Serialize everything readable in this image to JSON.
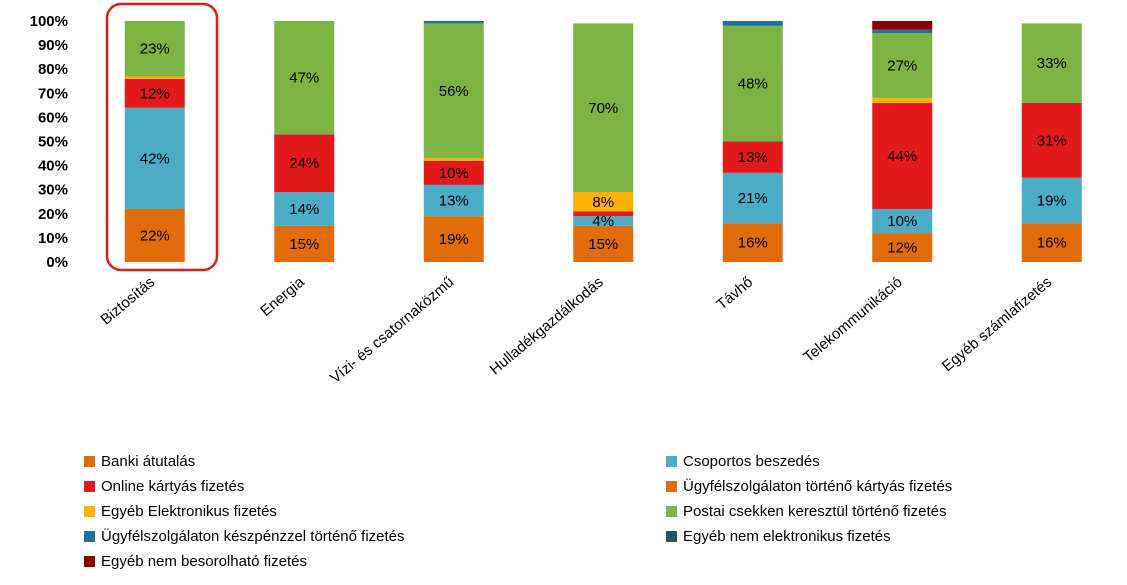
{
  "chart_data": {
    "type": "bar",
    "stacked": true,
    "categories": [
      "Biztosítás",
      "Energia",
      "Vízi- és csatornaközmű",
      "Hulladékgazdálkodás",
      "Távhő",
      "Telekommunikáció",
      "Egyéb számlafizetés"
    ],
    "ylim": [
      0,
      1
    ],
    "yticks": [
      "0%",
      "10%",
      "20%",
      "30%",
      "40%",
      "50%",
      "60%",
      "70%",
      "80%",
      "90%",
      "100%"
    ],
    "legend_position": "bottom",
    "series": [
      {
        "name": "Banki átutalás",
        "color": "#e36c0a",
        "values": [
          0.22,
          0.15,
          0.19,
          0.15,
          0.16,
          0.12,
          0.16
        ],
        "labels": [
          "22%",
          "15%",
          "19%",
          "15%",
          "16%",
          "12%",
          "16%"
        ]
      },
      {
        "name": "Csoportos beszedés",
        "color": "#4bacc6",
        "values": [
          0.42,
          0.14,
          0.13,
          0.04,
          0.21,
          0.1,
          0.19
        ],
        "labels": [
          "42%",
          "14%",
          "13%",
          "4%",
          "21%",
          "10%",
          "19%"
        ]
      },
      {
        "name": "Online kártyás fizetés",
        "color": "#e31a1c",
        "values": [
          0.12,
          0.24,
          0.1,
          0.02,
          0.13,
          0.44,
          0.31
        ],
        "labels": [
          "12%",
          "24%",
          "10%",
          "",
          "13%",
          "44%",
          "31%"
        ]
      },
      {
        "name": "Ügyfélszolgálaton történő kártyás fizetés",
        "color": "#e36c0a",
        "values": [
          0,
          0,
          0,
          0,
          0,
          0,
          0
        ],
        "labels": [
          "",
          "",
          "",
          "",
          "",
          "",
          ""
        ]
      },
      {
        "name": "Egyéb Elektronikus fizetés",
        "color": "#ffb000",
        "values": [
          0.01,
          0,
          0.01,
          0.08,
          0,
          0.02,
          0
        ],
        "labels": [
          "",
          "",
          "",
          "8%",
          "",
          "",
          ""
        ]
      },
      {
        "name": "Postai csekken keresztül történő fizetés",
        "color": "#7cb342",
        "values": [
          0.23,
          0.47,
          0.56,
          0.7,
          0.48,
          0.27,
          0.33
        ],
        "labels": [
          "23%",
          "47%",
          "56%",
          "70%",
          "48%",
          "27%",
          "33%"
        ]
      },
      {
        "name": "Ügyfélszolgálaton készpénzzel történő fizetés",
        "color": "#1f6fa0",
        "values": [
          0,
          0,
          0.01,
          0,
          0.02,
          0.015,
          0
        ],
        "labels": [
          "",
          "",
          "",
          "",
          "",
          "",
          ""
        ]
      },
      {
        "name": "Egyéb nem elektronikus fizetés",
        "color": "#215868",
        "values": [
          0,
          0,
          0,
          0,
          0,
          0,
          0
        ],
        "labels": [
          "",
          "",
          "",
          "",
          "",
          "",
          ""
        ]
      },
      {
        "name": "Egyéb nem besorolható fizetés",
        "color": "#8b0000",
        "values": [
          0,
          0,
          0,
          0,
          0,
          0.035,
          0
        ],
        "labels": [
          "",
          "",
          "",
          "",
          "",
          "",
          ""
        ]
      }
    ],
    "highlight_category": "Biztosítás",
    "highlight_color": "#e31a1c"
  }
}
